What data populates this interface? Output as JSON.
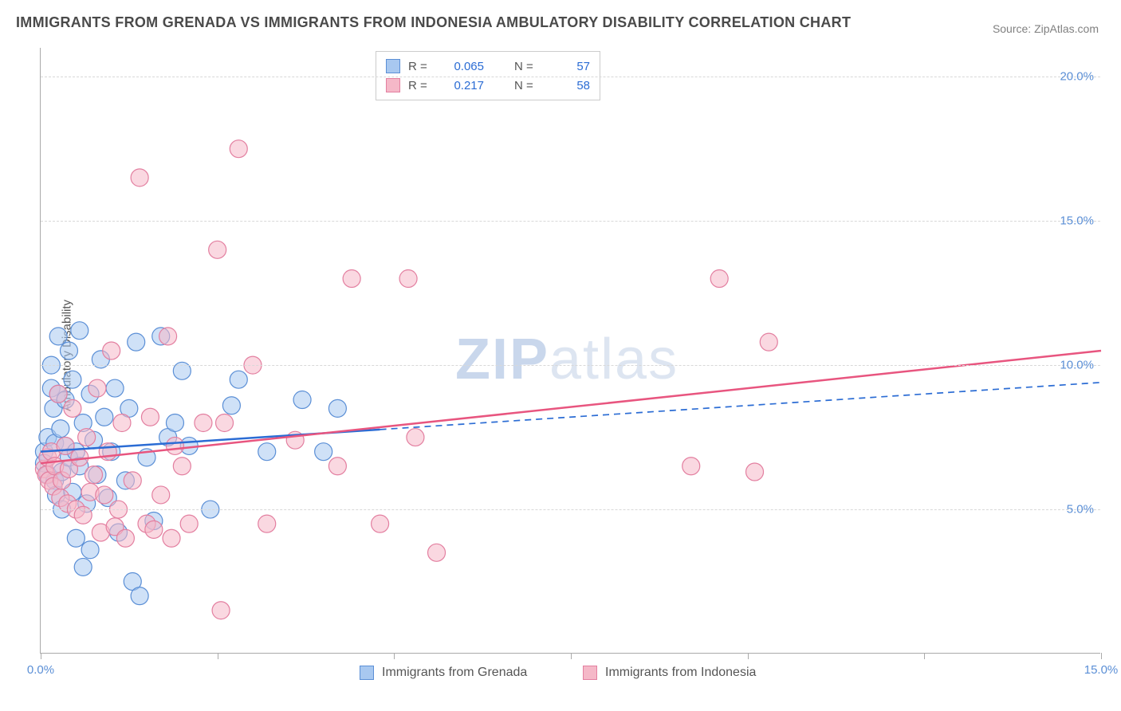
{
  "title": "IMMIGRANTS FROM GRENADA VS IMMIGRANTS FROM INDONESIA AMBULATORY DISABILITY CORRELATION CHART",
  "source": "Source: ZipAtlas.com",
  "ylabel": "Ambulatory Disability",
  "watermark_zip": "ZIP",
  "watermark_atlas": "atlas",
  "chart": {
    "type": "scatter",
    "xlim": [
      0,
      15
    ],
    "ylim": [
      0,
      21
    ],
    "x_ticks": [
      0,
      2.5,
      5,
      7.5,
      10,
      12.5,
      15
    ],
    "x_tick_labels": {
      "0": "0.0%",
      "15": "15.0%"
    },
    "y_gridlines": [
      5,
      10,
      15,
      20
    ],
    "y_tick_labels": {
      "5": "5.0%",
      "10": "10.0%",
      "15": "15.0%",
      "20": "20.0%"
    },
    "grid_color": "#d8d8d8",
    "axis_color": "#aaaaaa",
    "background_color": "#ffffff",
    "point_radius": 11,
    "point_opacity": 0.55,
    "line_width": 2.5,
    "series": [
      {
        "name": "Immigrants from Grenada",
        "fill": "#a8c8f0",
        "stroke": "#5b8fd6",
        "line_color": "#2b6cd4",
        "line_dash_after_x": 4.8,
        "trend_start": [
          0,
          7.0
        ],
        "trend_end": [
          15,
          9.4
        ],
        "R": "0.065",
        "N": "57",
        "points": [
          [
            0.05,
            7.0
          ],
          [
            0.05,
            6.6
          ],
          [
            0.1,
            6.2
          ],
          [
            0.1,
            7.5
          ],
          [
            0.15,
            10.0
          ],
          [
            0.15,
            9.2
          ],
          [
            0.18,
            8.5
          ],
          [
            0.2,
            7.3
          ],
          [
            0.2,
            6.0
          ],
          [
            0.22,
            5.5
          ],
          [
            0.25,
            11.0
          ],
          [
            0.25,
            9.0
          ],
          [
            0.28,
            7.8
          ],
          [
            0.3,
            6.3
          ],
          [
            0.3,
            5.0
          ],
          [
            0.35,
            8.8
          ],
          [
            0.35,
            7.2
          ],
          [
            0.4,
            6.8
          ],
          [
            0.4,
            10.5
          ],
          [
            0.45,
            9.5
          ],
          [
            0.45,
            5.6
          ],
          [
            0.5,
            7.0
          ],
          [
            0.5,
            4.0
          ],
          [
            0.55,
            11.2
          ],
          [
            0.55,
            6.5
          ],
          [
            0.6,
            8.0
          ],
          [
            0.6,
            3.0
          ],
          [
            0.65,
            5.2
          ],
          [
            0.7,
            9.0
          ],
          [
            0.7,
            3.6
          ],
          [
            0.75,
            7.4
          ],
          [
            0.8,
            6.2
          ],
          [
            0.85,
            10.2
          ],
          [
            0.9,
            8.2
          ],
          [
            0.95,
            5.4
          ],
          [
            1.0,
            7.0
          ],
          [
            1.05,
            9.2
          ],
          [
            1.1,
            4.2
          ],
          [
            1.2,
            6.0
          ],
          [
            1.25,
            8.5
          ],
          [
            1.3,
            2.5
          ],
          [
            1.35,
            10.8
          ],
          [
            1.4,
            2.0
          ],
          [
            1.5,
            6.8
          ],
          [
            1.6,
            4.6
          ],
          [
            1.7,
            11.0
          ],
          [
            1.8,
            7.5
          ],
          [
            1.9,
            8.0
          ],
          [
            2.0,
            9.8
          ],
          [
            2.1,
            7.2
          ],
          [
            2.4,
            5.0
          ],
          [
            2.7,
            8.6
          ],
          [
            2.8,
            9.5
          ],
          [
            3.2,
            7.0
          ],
          [
            3.7,
            8.8
          ],
          [
            4.0,
            7.0
          ],
          [
            4.2,
            8.5
          ]
        ]
      },
      {
        "name": "Immigrants from Indonesia",
        "fill": "#f5b8c8",
        "stroke": "#e37fa0",
        "line_color": "#e8557f",
        "line_dash_after_x": 15,
        "trend_start": [
          0,
          6.6
        ],
        "trend_end": [
          15,
          10.5
        ],
        "R": "0.217",
        "N": "58",
        "points": [
          [
            0.05,
            6.4
          ],
          [
            0.08,
            6.2
          ],
          [
            0.1,
            6.8
          ],
          [
            0.12,
            6.0
          ],
          [
            0.15,
            7.0
          ],
          [
            0.18,
            5.8
          ],
          [
            0.2,
            6.5
          ],
          [
            0.25,
            9.0
          ],
          [
            0.28,
            5.4
          ],
          [
            0.3,
            6.0
          ],
          [
            0.35,
            7.2
          ],
          [
            0.38,
            5.2
          ],
          [
            0.4,
            6.4
          ],
          [
            0.45,
            8.5
          ],
          [
            0.5,
            5.0
          ],
          [
            0.55,
            6.8
          ],
          [
            0.6,
            4.8
          ],
          [
            0.65,
            7.5
          ],
          [
            0.7,
            5.6
          ],
          [
            0.75,
            6.2
          ],
          [
            0.8,
            9.2
          ],
          [
            0.85,
            4.2
          ],
          [
            0.9,
            5.5
          ],
          [
            0.95,
            7.0
          ],
          [
            1.0,
            10.5
          ],
          [
            1.05,
            4.4
          ],
          [
            1.1,
            5.0
          ],
          [
            1.15,
            8.0
          ],
          [
            1.2,
            4.0
          ],
          [
            1.3,
            6.0
          ],
          [
            1.4,
            16.5
          ],
          [
            1.5,
            4.5
          ],
          [
            1.55,
            8.2
          ],
          [
            1.6,
            4.3
          ],
          [
            1.7,
            5.5
          ],
          [
            1.8,
            11.0
          ],
          [
            1.85,
            4.0
          ],
          [
            1.9,
            7.2
          ],
          [
            2.0,
            6.5
          ],
          [
            2.1,
            4.5
          ],
          [
            2.3,
            8.0
          ],
          [
            2.5,
            14.0
          ],
          [
            2.55,
            1.5
          ],
          [
            2.6,
            8.0
          ],
          [
            2.8,
            17.5
          ],
          [
            3.0,
            10.0
          ],
          [
            3.2,
            4.5
          ],
          [
            3.6,
            7.4
          ],
          [
            4.2,
            6.5
          ],
          [
            4.4,
            13.0
          ],
          [
            4.8,
            4.5
          ],
          [
            5.2,
            13.0
          ],
          [
            5.3,
            7.5
          ],
          [
            5.6,
            3.5
          ],
          [
            9.2,
            6.5
          ],
          [
            9.6,
            13.0
          ],
          [
            10.1,
            6.3
          ],
          [
            10.3,
            10.8
          ]
        ]
      }
    ]
  },
  "legend_top": {
    "R_label": "R =",
    "N_label": "N ="
  }
}
